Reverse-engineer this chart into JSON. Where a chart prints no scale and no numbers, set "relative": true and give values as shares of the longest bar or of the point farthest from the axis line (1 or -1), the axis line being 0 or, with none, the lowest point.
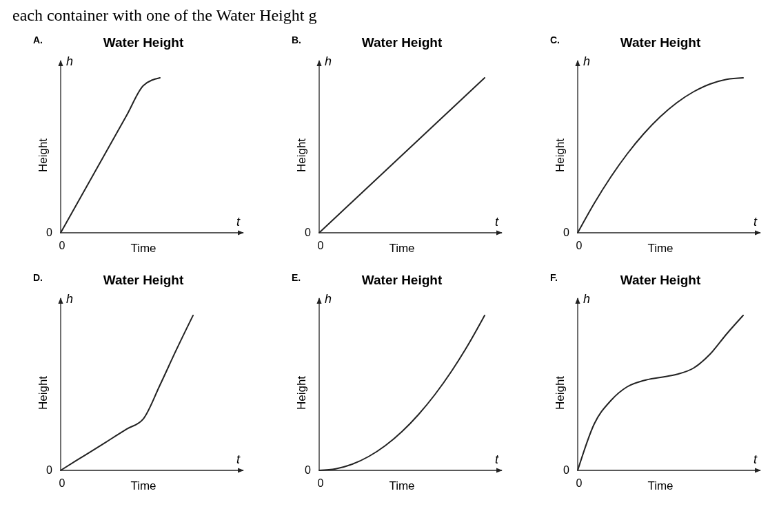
{
  "chart_data": [
    {
      "type": "line",
      "relative": true,
      "title": "Water Height",
      "xlabel": "Time",
      "ylabel": "Height",
      "color": "#222222",
      "annotations": [
        "A.",
        "h",
        "t",
        "0",
        "0",
        "each container with one of the Water Height g"
      ],
      "categories": [
        null,
        null,
        null,
        null,
        null,
        null,
        null,
        null,
        null,
        null,
        null
      ],
      "values": [
        0,
        0.19,
        0.38,
        0.57,
        0.76,
        0.95,
        1,
        null,
        null,
        null,
        null
      ]
    },
    {
      "type": "line",
      "relative": true,
      "title": "Water Height",
      "xlabel": "Time",
      "ylabel": "Height",
      "color": "#222222",
      "annotations": [
        "B.",
        "h",
        "t",
        "0",
        "0"
      ],
      "categories": [
        null,
        null,
        null,
        null,
        null,
        null,
        null,
        null,
        null,
        null,
        null
      ],
      "values": [
        0,
        0.1,
        0.2,
        0.3,
        0.4,
        0.5,
        0.6,
        0.7,
        0.8,
        0.9,
        1
      ]
    },
    {
      "type": "line",
      "relative": true,
      "title": "Water Height",
      "xlabel": "Time",
      "ylabel": "Height",
      "color": "#222222",
      "annotations": [
        "C.",
        "h",
        "t",
        "0",
        "0"
      ],
      "categories": [
        null,
        null,
        null,
        null,
        null,
        null,
        null,
        null,
        null,
        null,
        null
      ],
      "values": [
        0,
        0.19,
        0.36,
        0.51,
        0.64,
        0.75,
        0.84,
        0.91,
        0.96,
        0.99,
        1
      ]
    },
    {
      "type": "line",
      "relative": true,
      "title": "Water Height",
      "xlabel": "Time",
      "ylabel": "Height",
      "color": "#222222",
      "annotations": [
        "D.",
        "h",
        "t",
        "0",
        "0"
      ],
      "categories": [
        null,
        null,
        null,
        null,
        null,
        null,
        null,
        null,
        null,
        null,
        null
      ],
      "values": [
        0,
        0.067,
        0.133,
        0.2,
        0.267,
        0.333,
        0.55,
        0.78,
        1,
        null,
        null
      ]
    },
    {
      "type": "line",
      "relative": true,
      "title": "Water Height",
      "xlabel": "Time",
      "ylabel": "Height",
      "color": "#222222",
      "annotations": [
        "E.",
        "h",
        "t",
        "0",
        "0"
      ],
      "categories": [
        null,
        null,
        null,
        null,
        null,
        null,
        null,
        null,
        null,
        null,
        null
      ],
      "values": [
        0,
        0.01,
        0.04,
        0.09,
        0.16,
        0.25,
        0.36,
        0.49,
        0.64,
        0.81,
        1
      ]
    },
    {
      "type": "line",
      "relative": true,
      "title": "Water Height",
      "xlabel": "Time",
      "ylabel": "Height",
      "color": "#222222",
      "annotations": [
        "F.",
        "h",
        "t",
        "0",
        "0"
      ],
      "categories": [
        null,
        null,
        null,
        null,
        null,
        null,
        null,
        null,
        null,
        null,
        null
      ],
      "values": [
        0,
        0.3,
        0.45,
        0.54,
        0.58,
        0.6,
        0.62,
        0.66,
        0.75,
        0.88,
        1
      ]
    }
  ]
}
